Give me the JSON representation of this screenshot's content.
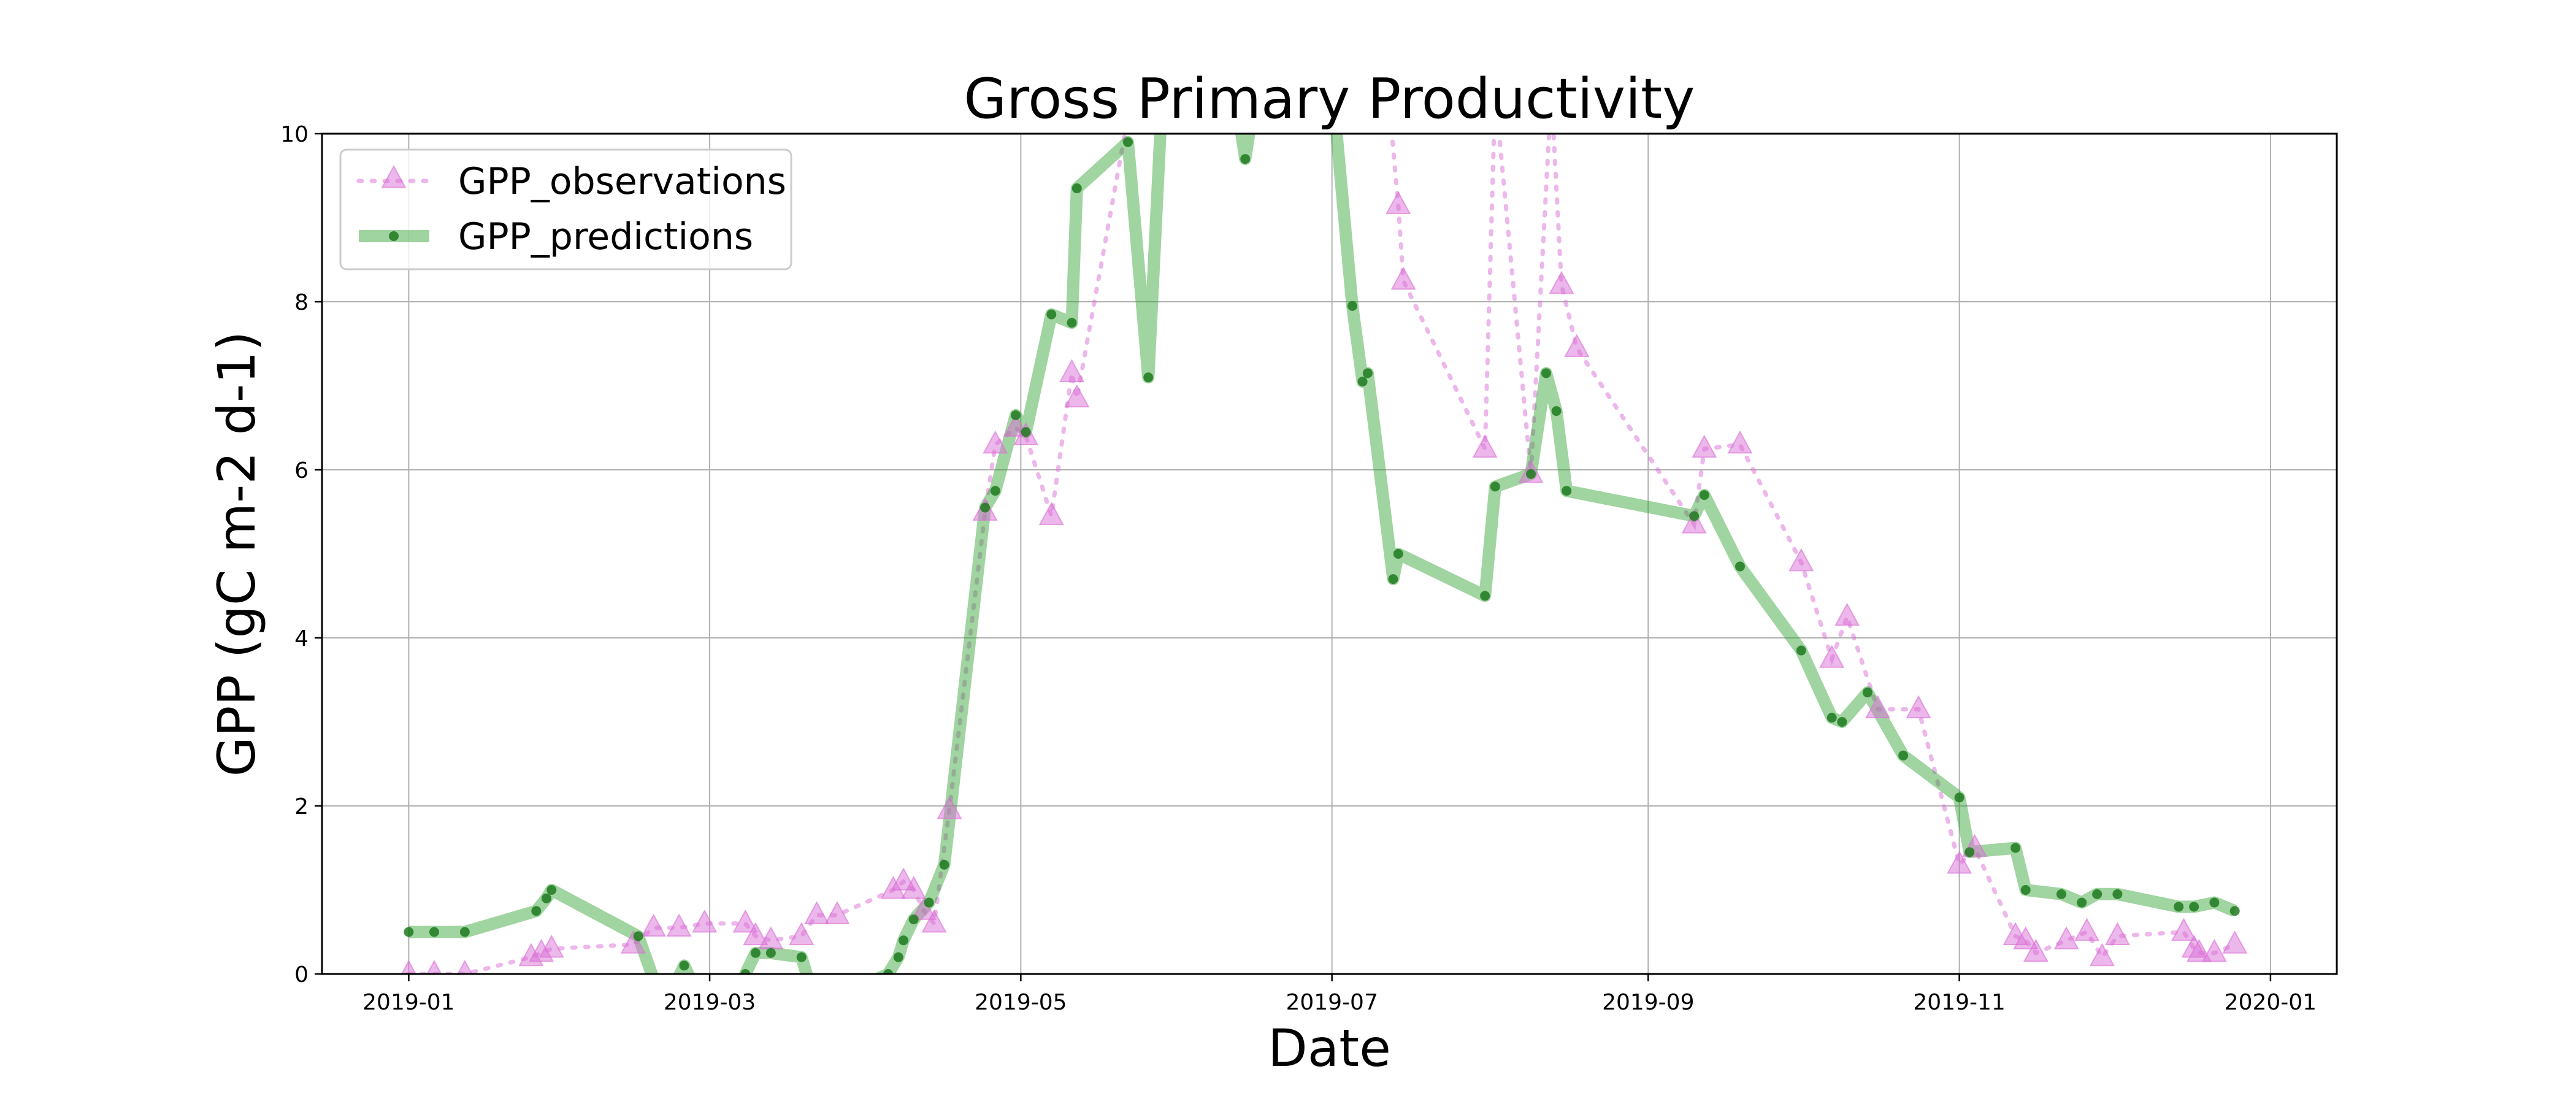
{
  "chart_data": {
    "type": "line",
    "title": "Gross Primary Productivity",
    "xlabel": "Date",
    "ylabel": "GPP (gC m-2 d-1)",
    "x_axis": "date",
    "xlim": [
      "2018-12-15",
      "2020-01-14"
    ],
    "ylim": [
      0,
      10
    ],
    "x_ticks": [
      "2019-01-01",
      "2019-03-01",
      "2019-05-01",
      "2019-07-01",
      "2019-09-01",
      "2019-11-01",
      "2020-01-01"
    ],
    "x_tick_labels": [
      "2019-01",
      "2019-03",
      "2019-05",
      "2019-07",
      "2019-09",
      "2019-11",
      "2020-01"
    ],
    "y_ticks": [
      0,
      2,
      4,
      6,
      8,
      10
    ],
    "y_tick_labels": [
      "0",
      "2",
      "4",
      "6",
      "8",
      "10"
    ],
    "grid": true,
    "legend": "top-left",
    "series": [
      {
        "name": "GPP_observations",
        "color": "#da70d6",
        "style": "dotted line with triangle markers",
        "points": [
          [
            "2019-01-01",
            0.0
          ],
          [
            "2019-01-06",
            0.0
          ],
          [
            "2019-01-12",
            0.0
          ],
          [
            "2019-01-25",
            0.2
          ],
          [
            "2019-01-27",
            0.25
          ],
          [
            "2019-01-29",
            0.3
          ],
          [
            "2019-02-14",
            0.35
          ],
          [
            "2019-02-18",
            0.55
          ],
          [
            "2019-02-23",
            0.55
          ],
          [
            "2019-02-28",
            0.6
          ],
          [
            "2019-03-08",
            0.6
          ],
          [
            "2019-03-10",
            0.45
          ],
          [
            "2019-03-13",
            0.4
          ],
          [
            "2019-03-19",
            0.45
          ],
          [
            "2019-03-22",
            0.7
          ],
          [
            "2019-03-26",
            0.7
          ],
          [
            "2019-04-06",
            1.0
          ],
          [
            "2019-04-08",
            1.1
          ],
          [
            "2019-04-10",
            1.0
          ],
          [
            "2019-04-12",
            0.75
          ],
          [
            "2019-04-14",
            0.6
          ],
          [
            "2019-04-17",
            1.95
          ],
          [
            "2019-04-24",
            5.5
          ],
          [
            "2019-04-26",
            6.3
          ],
          [
            "2019-04-30",
            6.5
          ],
          [
            "2019-05-02",
            6.4
          ],
          [
            "2019-05-07",
            5.45
          ],
          [
            "2019-05-11",
            7.15
          ],
          [
            "2019-05-12",
            6.85
          ],
          [
            "2019-05-22",
            10.2
          ],
          [
            "2019-07-12",
            10.5
          ],
          [
            "2019-07-14",
            9.15
          ],
          [
            "2019-07-15",
            8.25
          ],
          [
            "2019-07-31",
            6.25
          ],
          [
            "2019-08-02",
            10.5
          ],
          [
            "2019-08-09",
            5.95
          ],
          [
            "2019-08-13",
            10.5
          ],
          [
            "2019-08-15",
            8.2
          ],
          [
            "2019-08-18",
            7.45
          ],
          [
            "2019-09-10",
            5.35
          ],
          [
            "2019-09-12",
            6.25
          ],
          [
            "2019-09-19",
            6.3
          ],
          [
            "2019-10-01",
            4.9
          ],
          [
            "2019-10-07",
            3.75
          ],
          [
            "2019-10-10",
            4.25
          ],
          [
            "2019-10-16",
            3.15
          ],
          [
            "2019-10-24",
            3.15
          ],
          [
            "2019-11-01",
            1.3
          ],
          [
            "2019-11-04",
            1.5
          ],
          [
            "2019-11-12",
            0.45
          ],
          [
            "2019-11-14",
            0.4
          ],
          [
            "2019-11-16",
            0.25
          ],
          [
            "2019-11-22",
            0.4
          ],
          [
            "2019-11-26",
            0.5
          ],
          [
            "2019-11-29",
            0.2
          ],
          [
            "2019-12-02",
            0.45
          ],
          [
            "2019-12-15",
            0.5
          ],
          [
            "2019-12-17",
            0.3
          ],
          [
            "2019-12-18",
            0.25
          ],
          [
            "2019-12-21",
            0.25
          ],
          [
            "2019-12-25",
            0.35
          ]
        ]
      },
      {
        "name": "GPP_predictions",
        "color": "#2ca02c",
        "style": "thick translucent line with dot markers",
        "points": [
          [
            "2019-01-01",
            0.5
          ],
          [
            "2019-01-06",
            0.5
          ],
          [
            "2019-01-12",
            0.5
          ],
          [
            "2019-01-26",
            0.75
          ],
          [
            "2019-01-28",
            0.9
          ],
          [
            "2019-01-29",
            1.0
          ],
          [
            "2019-02-15",
            0.45
          ],
          [
            "2019-02-20",
            -0.4
          ],
          [
            "2019-02-24",
            0.1
          ],
          [
            "2019-02-28",
            -0.4
          ],
          [
            "2019-03-05",
            -0.4
          ],
          [
            "2019-03-08",
            0.0
          ],
          [
            "2019-03-10",
            0.25
          ],
          [
            "2019-03-13",
            0.25
          ],
          [
            "2019-03-19",
            0.2
          ],
          [
            "2019-03-22",
            -0.4
          ],
          [
            "2019-04-05",
            0.0
          ],
          [
            "2019-04-07",
            0.2
          ],
          [
            "2019-04-08",
            0.4
          ],
          [
            "2019-04-10",
            0.65
          ],
          [
            "2019-04-13",
            0.85
          ],
          [
            "2019-04-16",
            1.3
          ],
          [
            "2019-04-24",
            5.55
          ],
          [
            "2019-04-26",
            5.75
          ],
          [
            "2019-04-30",
            6.65
          ],
          [
            "2019-05-02",
            6.45
          ],
          [
            "2019-05-07",
            7.85
          ],
          [
            "2019-05-11",
            7.75
          ],
          [
            "2019-05-12",
            9.35
          ],
          [
            "2019-05-22",
            9.9
          ],
          [
            "2019-05-26",
            7.1
          ],
          [
            "2019-05-29",
            10.8
          ],
          [
            "2019-06-12",
            10.5
          ],
          [
            "2019-06-14",
            9.7
          ],
          [
            "2019-06-16",
            10.5
          ],
          [
            "2019-07-01",
            10.6
          ],
          [
            "2019-07-05",
            7.95
          ],
          [
            "2019-07-07",
            7.05
          ],
          [
            "2019-07-08",
            7.15
          ],
          [
            "2019-07-13",
            4.7
          ],
          [
            "2019-07-14",
            5.0
          ],
          [
            "2019-07-31",
            4.5
          ],
          [
            "2019-08-02",
            5.8
          ],
          [
            "2019-08-09",
            5.95
          ],
          [
            "2019-08-12",
            7.15
          ],
          [
            "2019-08-14",
            6.7
          ],
          [
            "2019-08-16",
            5.75
          ],
          [
            "2019-09-10",
            5.45
          ],
          [
            "2019-09-12",
            5.7
          ],
          [
            "2019-09-19",
            4.85
          ],
          [
            "2019-10-01",
            3.85
          ],
          [
            "2019-10-07",
            3.05
          ],
          [
            "2019-10-09",
            3.0
          ],
          [
            "2019-10-14",
            3.35
          ],
          [
            "2019-10-21",
            2.6
          ],
          [
            "2019-11-01",
            2.1
          ],
          [
            "2019-11-03",
            1.45
          ],
          [
            "2019-11-12",
            1.5
          ],
          [
            "2019-11-14",
            1.0
          ],
          [
            "2019-11-21",
            0.95
          ],
          [
            "2019-11-25",
            0.85
          ],
          [
            "2019-11-28",
            0.95
          ],
          [
            "2019-12-02",
            0.95
          ],
          [
            "2019-12-14",
            0.8
          ],
          [
            "2019-12-17",
            0.8
          ],
          [
            "2019-12-21",
            0.85
          ],
          [
            "2019-12-25",
            0.75
          ]
        ]
      }
    ]
  }
}
